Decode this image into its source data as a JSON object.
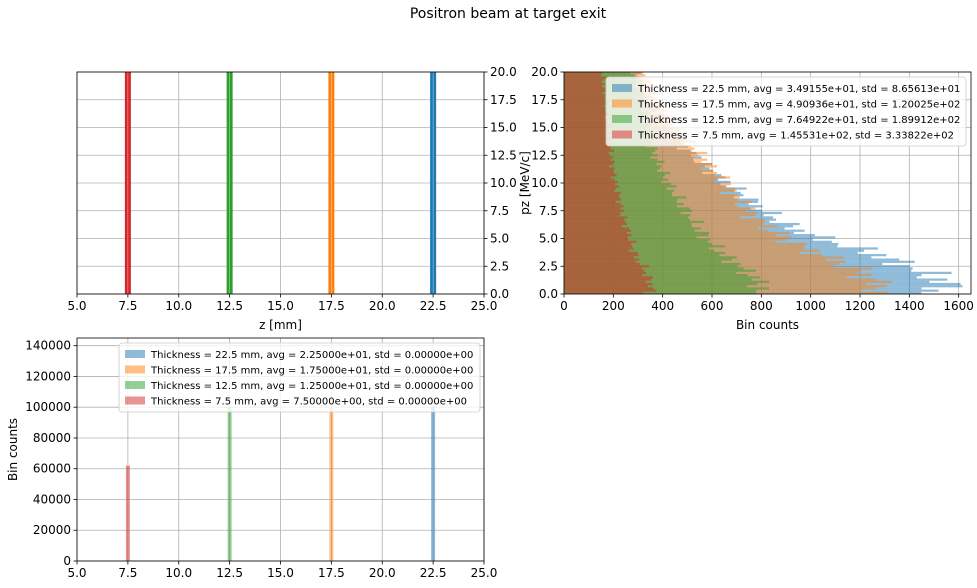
{
  "suptitle": "Positron beam at target exit",
  "colors": {
    "c0": "#1f77b4",
    "c1": "#ff7f0e",
    "c2": "#2ca02c",
    "c3": "#d62728"
  },
  "chart_data": [
    {
      "id": "top-left",
      "type": "scatter",
      "xlabel": "z [mm]",
      "ylabel": "",
      "xlim": [
        5.0,
        25.0
      ],
      "ylim": [
        0.0,
        20.0
      ],
      "xticks": [
        "5.0",
        "7.5",
        "10.0",
        "12.5",
        "15.0",
        "17.5",
        "20.0",
        "22.5",
        "25.0"
      ],
      "yticks": [
        "0.0",
        "2.5",
        "5.0",
        "7.5",
        "10.0",
        "12.5",
        "15.0",
        "17.5",
        "20.0"
      ],
      "y_axis_side": "right",
      "grid": true,
      "series": [
        {
          "x": 22.5,
          "color_key": "c0"
        },
        {
          "x": 17.5,
          "color_key": "c1"
        },
        {
          "x": 12.5,
          "color_key": "c2"
        },
        {
          "x": 7.5,
          "color_key": "c3"
        }
      ]
    },
    {
      "id": "top-right",
      "type": "bar",
      "orientation": "horizontal",
      "xlabel": "Bin counts",
      "ylabel": "pz [MeV/c]",
      "xlim": [
        0,
        1650
      ],
      "ylim": [
        0.0,
        20.0
      ],
      "xticks": [
        "0",
        "200",
        "400",
        "600",
        "800",
        "1000",
        "1200",
        "1400",
        "1600"
      ],
      "yticks": [
        "0.0",
        "2.5",
        "5.0",
        "7.5",
        "10.0",
        "12.5",
        "15.0",
        "17.5",
        "20.0"
      ],
      "grid": true,
      "legend_position": "top-right",
      "bins": 100,
      "series": [
        {
          "name": "Thickness = 22.5 mm, avg = 3.49155e+01, std = 8.65613e+01",
          "color_key": "c0",
          "profile": [
            [
              0,
              1420
            ],
            [
              0.5,
              1560
            ],
            [
              1,
              1540
            ],
            [
              1.5,
              1500
            ],
            [
              2,
              1450
            ],
            [
              2.5,
              1400
            ],
            [
              3,
              1330
            ],
            [
              3.5,
              1280
            ],
            [
              4,
              1200
            ],
            [
              4.5,
              1120
            ],
            [
              5,
              1040
            ],
            [
              6,
              920
            ],
            [
              7,
              840
            ],
            [
              8,
              780
            ],
            [
              9,
              720
            ],
            [
              10,
              660
            ],
            [
              11,
              600
            ],
            [
              12,
              550
            ],
            [
              13,
              500
            ],
            [
              14,
              460
            ],
            [
              15,
              420
            ],
            [
              16,
              390
            ],
            [
              17,
              360
            ],
            [
              18,
              330
            ],
            [
              19,
              310
            ],
            [
              20,
              290
            ]
          ]
        },
        {
          "name": "Thickness = 17.5 mm, avg = 4.90936e+01, std = 1.20025e+02",
          "color_key": "c1",
          "profile": [
            [
              0,
              1200
            ],
            [
              0.5,
              1300
            ],
            [
              1,
              1260
            ],
            [
              1.5,
              1230
            ],
            [
              2,
              1200
            ],
            [
              2.5,
              1160
            ],
            [
              3,
              1100
            ],
            [
              3.5,
              1050
            ],
            [
              4,
              990
            ],
            [
              4.5,
              940
            ],
            [
              5,
              900
            ],
            [
              6,
              830
            ],
            [
              7,
              770
            ],
            [
              8,
              730
            ],
            [
              9,
              690
            ],
            [
              10,
              650
            ],
            [
              11,
              610
            ],
            [
              12,
              570
            ],
            [
              13,
              530
            ],
            [
              14,
              490
            ],
            [
              15,
              450
            ],
            [
              16,
              420
            ],
            [
              17,
              390
            ],
            [
              18,
              360
            ],
            [
              19,
              340
            ],
            [
              20,
              320
            ]
          ]
        },
        {
          "name": "Thickness = 12.5 mm, avg = 7.64922e+01, std = 1.89912e+02",
          "color_key": "c2",
          "profile": [
            [
              0,
              760
            ],
            [
              0.5,
              800
            ],
            [
              1,
              790
            ],
            [
              1.5,
              770
            ],
            [
              2,
              740
            ],
            [
              2.5,
              710
            ],
            [
              3,
              680
            ],
            [
              3.5,
              650
            ],
            [
              4,
              620
            ],
            [
              4.5,
              600
            ],
            [
              5,
              580
            ],
            [
              6,
              540
            ],
            [
              7,
              510
            ],
            [
              8,
              480
            ],
            [
              9,
              450
            ],
            [
              10,
              420
            ],
            [
              11,
              400
            ],
            [
              12,
              380
            ],
            [
              13,
              360
            ],
            [
              14,
              350
            ],
            [
              15,
              340
            ],
            [
              16,
              330
            ],
            [
              17,
              320
            ],
            [
              18,
              310
            ],
            [
              19,
              300
            ],
            [
              20,
              290
            ]
          ]
        },
        {
          "name": "Thickness = 7.5 mm, avg = 1.45531e+02, std = 3.33822e+02",
          "color_key": "c3",
          "profile": [
            [
              0,
              330
            ],
            [
              0.5,
              360
            ],
            [
              1,
              350
            ],
            [
              1.5,
              340
            ],
            [
              2,
              330
            ],
            [
              2.5,
              320
            ],
            [
              3,
              300
            ],
            [
              3.5,
              290
            ],
            [
              4,
              280
            ],
            [
              5,
              270
            ],
            [
              6,
              255
            ],
            [
              7,
              240
            ],
            [
              8,
              230
            ],
            [
              9,
              220
            ],
            [
              10,
              210
            ],
            [
              11,
              200
            ],
            [
              12,
              195
            ],
            [
              13,
              190
            ],
            [
              14,
              185
            ],
            [
              15,
              180
            ],
            [
              16,
              175
            ],
            [
              17,
              170
            ],
            [
              18,
              165
            ],
            [
              19,
              160
            ],
            [
              20,
              155
            ]
          ]
        }
      ]
    },
    {
      "id": "bottom-left",
      "type": "bar",
      "xlabel": "",
      "ylabel": "Bin counts",
      "xlim": [
        5.0,
        25.0
      ],
      "ylim": [
        0,
        145000
      ],
      "xticks": [
        "5.0",
        "7.5",
        "10.0",
        "12.5",
        "15.0",
        "17.5",
        "20.0",
        "22.5",
        "25.0"
      ],
      "yticks": [
        "0",
        "20000",
        "40000",
        "60000",
        "80000",
        "100000",
        "120000",
        "140000"
      ],
      "grid": true,
      "legend_position": "top-right",
      "series": [
        {
          "name": "Thickness = 22.5 mm, avg = 2.25000e+01, std = 0.00000e+00",
          "x": 22.5,
          "value": 100000,
          "color_key": "c0"
        },
        {
          "name": "Thickness = 17.5 mm, avg = 1.75000e+01, std = 0.00000e+00",
          "x": 17.5,
          "value": 100000,
          "color_key": "c1"
        },
        {
          "name": "Thickness = 12.5 mm, avg = 1.25000e+01, std = 0.00000e+00",
          "x": 12.5,
          "value": 100000,
          "color_key": "c2"
        },
        {
          "name": "Thickness = 7.5 mm, avg = 7.50000e+00, std = 0.00000e+00",
          "x": 7.5,
          "value": 62000,
          "color_key": "c3"
        }
      ]
    }
  ]
}
